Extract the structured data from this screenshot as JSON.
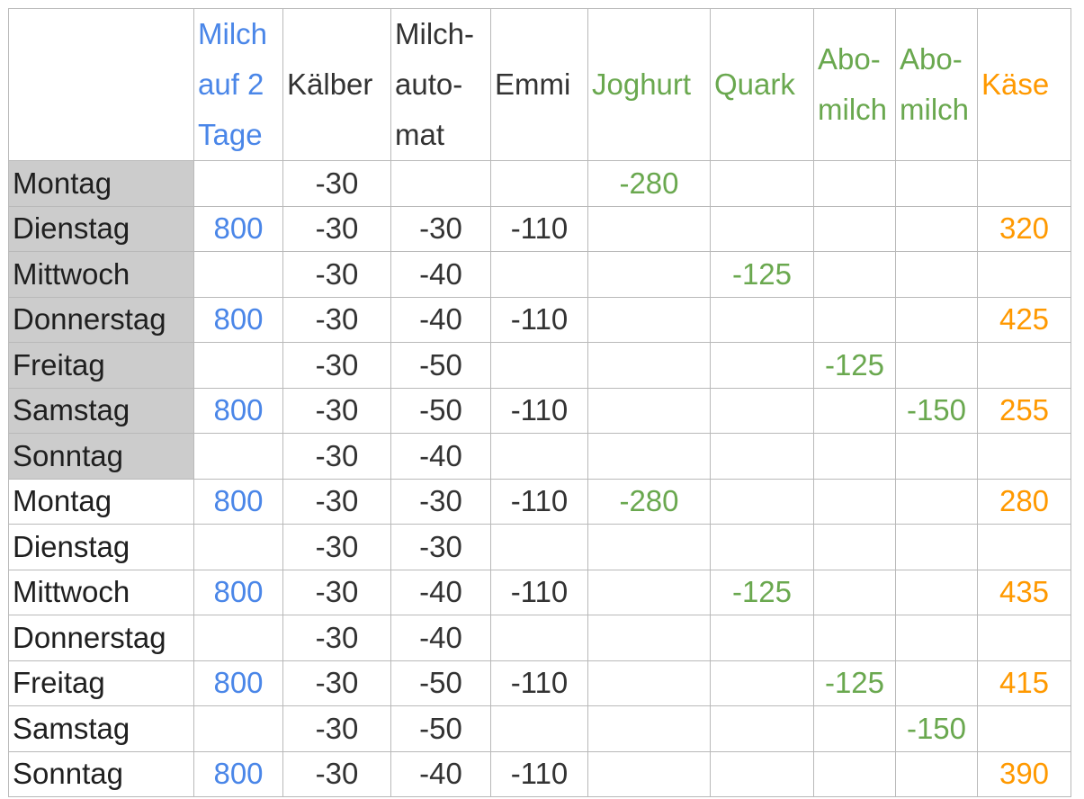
{
  "colors": {
    "blue": "#4a86e8",
    "dark": "#333333",
    "green": "#6aa84f",
    "orange": "#ff9900",
    "shade": "#cccccc",
    "grid": "#b9b9b9"
  },
  "columns": [
    {
      "key": "day",
      "label": "",
      "color": "dark"
    },
    {
      "key": "milch",
      "label": "Milch auf 2 Tage",
      "color": "blue"
    },
    {
      "key": "kaelber",
      "label": "Kälber",
      "color": "dark"
    },
    {
      "key": "automat",
      "label": "Milch-auto-mat",
      "color": "dark"
    },
    {
      "key": "emmi",
      "label": "Emmi",
      "color": "dark"
    },
    {
      "key": "joghurt",
      "label": "Joghurt",
      "color": "green"
    },
    {
      "key": "quark",
      "label": "Quark",
      "color": "green"
    },
    {
      "key": "abo1",
      "label": "Abo-milch",
      "color": "green"
    },
    {
      "key": "abo2",
      "label": "Abo-milch",
      "color": "green"
    },
    {
      "key": "kaese",
      "label": "Käse",
      "color": "orange"
    }
  ],
  "rows": [
    {
      "day": "Montag",
      "shaded": true,
      "milch": "",
      "kaelber": "-30",
      "automat": "",
      "emmi": "",
      "joghurt": "-280",
      "quark": "",
      "abo1": "",
      "abo2": "",
      "kaese": ""
    },
    {
      "day": "Dienstag",
      "shaded": true,
      "milch": "800",
      "kaelber": "-30",
      "automat": "-30",
      "emmi": "-110",
      "joghurt": "",
      "quark": "",
      "abo1": "",
      "abo2": "",
      "kaese": "320"
    },
    {
      "day": "Mittwoch",
      "shaded": true,
      "milch": "",
      "kaelber": "-30",
      "automat": "-40",
      "emmi": "",
      "joghurt": "",
      "quark": "-125",
      "abo1": "",
      "abo2": "",
      "kaese": ""
    },
    {
      "day": "Donnerstag",
      "shaded": true,
      "milch": "800",
      "kaelber": "-30",
      "automat": "-40",
      "emmi": "-110",
      "joghurt": "",
      "quark": "",
      "abo1": "",
      "abo2": "",
      "kaese": "425"
    },
    {
      "day": "Freitag",
      "shaded": true,
      "milch": "",
      "kaelber": "-30",
      "automat": "-50",
      "emmi": "",
      "joghurt": "",
      "quark": "",
      "abo1": "-125",
      "abo2": "",
      "kaese": ""
    },
    {
      "day": "Samstag",
      "shaded": true,
      "milch": "800",
      "kaelber": "-30",
      "automat": "-50",
      "emmi": "-110",
      "joghurt": "",
      "quark": "",
      "abo1": "",
      "abo2": "-150",
      "kaese": "255"
    },
    {
      "day": "Sonntag",
      "shaded": true,
      "milch": "",
      "kaelber": "-30",
      "automat": "-40",
      "emmi": "",
      "joghurt": "",
      "quark": "",
      "abo1": "",
      "abo2": "",
      "kaese": ""
    },
    {
      "day": "Montag",
      "shaded": false,
      "milch": "800",
      "kaelber": "-30",
      "automat": "-30",
      "emmi": "-110",
      "joghurt": "-280",
      "quark": "",
      "abo1": "",
      "abo2": "",
      "kaese": "280"
    },
    {
      "day": "Dienstag",
      "shaded": false,
      "milch": "",
      "kaelber": "-30",
      "automat": "-30",
      "emmi": "",
      "joghurt": "",
      "quark": "",
      "abo1": "",
      "abo2": "",
      "kaese": ""
    },
    {
      "day": "Mittwoch",
      "shaded": false,
      "milch": "800",
      "kaelber": "-30",
      "automat": "-40",
      "emmi": "-110",
      "joghurt": "",
      "quark": "-125",
      "abo1": "",
      "abo2": "",
      "kaese": "435"
    },
    {
      "day": "Donnerstag",
      "shaded": false,
      "milch": "",
      "kaelber": "-30",
      "automat": "-40",
      "emmi": "",
      "joghurt": "",
      "quark": "",
      "abo1": "",
      "abo2": "",
      "kaese": ""
    },
    {
      "day": "Freitag",
      "shaded": false,
      "milch": "800",
      "kaelber": "-30",
      "automat": "-50",
      "emmi": "-110",
      "joghurt": "",
      "quark": "",
      "abo1": "-125",
      "abo2": "",
      "kaese": "415"
    },
    {
      "day": "Samstag",
      "shaded": false,
      "milch": "",
      "kaelber": "-30",
      "automat": "-50",
      "emmi": "",
      "joghurt": "",
      "quark": "",
      "abo1": "",
      "abo2": "-150",
      "kaese": ""
    },
    {
      "day": "Sonntag",
      "shaded": false,
      "milch": "800",
      "kaelber": "-30",
      "automat": "-40",
      "emmi": "-110",
      "joghurt": "",
      "quark": "",
      "abo1": "",
      "abo2": "",
      "kaese": "390"
    }
  ]
}
